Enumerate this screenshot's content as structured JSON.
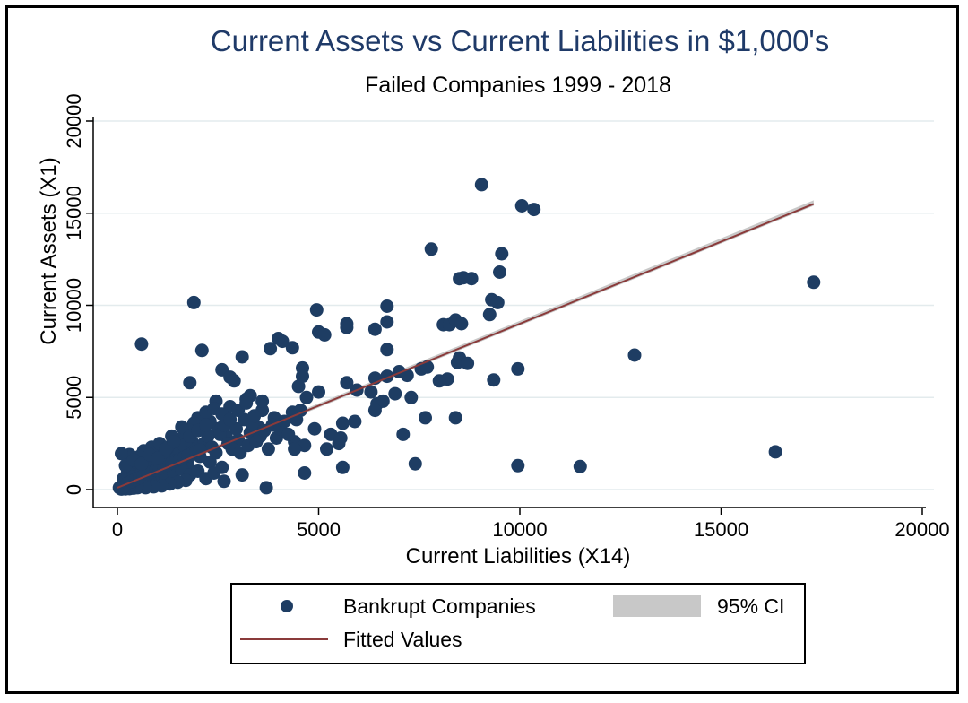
{
  "chart_data": {
    "type": "scatter",
    "title": "Current Assets vs Current Liabilities in $1,000's",
    "subtitle": "Failed Companies 1999 - 2018",
    "xlabel": "Current Liabilities (X14)",
    "ylabel": "Current Assets (X1)",
    "xlim": [
      0,
      20000
    ],
    "ylim": [
      0,
      20000
    ],
    "xticks": [
      0,
      5000,
      10000,
      15000,
      20000
    ],
    "yticks": [
      0,
      5000,
      10000,
      15000,
      20000
    ],
    "x_tick_labels": [
      "0",
      "5000",
      "10000",
      "15000",
      "20000"
    ],
    "y_tick_labels": [
      "0",
      "5000",
      "10000",
      "15000",
      "20000"
    ],
    "grid": "horizontal",
    "legend_position": "bottom",
    "colors": {
      "title": "#1f3a68",
      "points": "#1e3d63",
      "fit_line": "#8a3a3a",
      "ci_band": "#c8c8c8",
      "grid": "#e3ebed"
    },
    "series": [
      {
        "name": "Bankrupt Companies",
        "kind": "scatter",
        "points": [
          [
            9050,
            16550
          ],
          [
            10050,
            15400
          ],
          [
            10350,
            15200
          ],
          [
            17300,
            11250
          ],
          [
            7800,
            13050
          ],
          [
            9550,
            12800
          ],
          [
            9500,
            11800
          ],
          [
            8500,
            11450
          ],
          [
            8600,
            11500
          ],
          [
            8800,
            11450
          ],
          [
            1900,
            10150
          ],
          [
            9300,
            10300
          ],
          [
            9450,
            10150
          ],
          [
            6700,
            9950
          ],
          [
            9250,
            9500
          ],
          [
            4950,
            9750
          ],
          [
            8100,
            8950
          ],
          [
            8250,
            8950
          ],
          [
            8400,
            9200
          ],
          [
            8550,
            9000
          ],
          [
            5700,
            9000
          ],
          [
            5700,
            8800
          ],
          [
            6400,
            8700
          ],
          [
            6700,
            9100
          ],
          [
            5000,
            8550
          ],
          [
            5150,
            8400
          ],
          [
            600,
            7900
          ],
          [
            2100,
            7550
          ],
          [
            3800,
            7650
          ],
          [
            4100,
            8050
          ],
          [
            4350,
            7700
          ],
          [
            4000,
            8200
          ],
          [
            6700,
            7600
          ],
          [
            12850,
            7300
          ],
          [
            8500,
            7150
          ],
          [
            8450,
            6900
          ],
          [
            8700,
            6850
          ],
          [
            9950,
            6550
          ],
          [
            7550,
            6550
          ],
          [
            7700,
            6650
          ],
          [
            7000,
            6400
          ],
          [
            4600,
            6600
          ],
          [
            4600,
            6150
          ],
          [
            3100,
            7200
          ],
          [
            2600,
            6500
          ],
          [
            2800,
            6100
          ],
          [
            6400,
            6050
          ],
          [
            6700,
            6150
          ],
          [
            7200,
            6200
          ],
          [
            8200,
            6000
          ],
          [
            8000,
            5900
          ],
          [
            9350,
            5950
          ],
          [
            1800,
            5800
          ],
          [
            2900,
            5900
          ],
          [
            3300,
            5100
          ],
          [
            4500,
            5600
          ],
          [
            5000,
            5300
          ],
          [
            5700,
            5800
          ],
          [
            5950,
            5400
          ],
          [
            4700,
            5000
          ],
          [
            6300,
            5300
          ],
          [
            6900,
            5200
          ],
          [
            7300,
            5000
          ],
          [
            8400,
            3900
          ],
          [
            7650,
            3900
          ],
          [
            6450,
            4650
          ],
          [
            6600,
            4800
          ],
          [
            6400,
            4300
          ],
          [
            7100,
            3000
          ],
          [
            5900,
            3700
          ],
          [
            5600,
            3600
          ],
          [
            5300,
            3000
          ],
          [
            5500,
            2500
          ],
          [
            5200,
            2200
          ],
          [
            5550,
            2800
          ],
          [
            4900,
            3300
          ],
          [
            4400,
            2600
          ],
          [
            4650,
            2400
          ],
          [
            4400,
            2200
          ],
          [
            4650,
            900
          ],
          [
            5600,
            1200
          ],
          [
            7400,
            1400
          ],
          [
            9950,
            1300
          ],
          [
            11500,
            1250
          ],
          [
            16350,
            2050
          ],
          [
            3100,
            800
          ],
          [
            3700,
            100
          ],
          [
            2650,
            450
          ],
          [
            2300,
            1500
          ],
          [
            2000,
            3900
          ],
          [
            2450,
            4800
          ],
          [
            2800,
            4500
          ],
          [
            3200,
            4900
          ],
          [
            3600,
            4300
          ],
          [
            3900,
            3900
          ],
          [
            3500,
            3400
          ],
          [
            3300,
            3100
          ],
          [
            3000,
            2700
          ],
          [
            2700,
            2900
          ],
          [
            2500,
            3300
          ],
          [
            2300,
            3700
          ],
          [
            2200,
            4200
          ],
          [
            1900,
            3600
          ],
          [
            1800,
            3200
          ],
          [
            1600,
            2800
          ],
          [
            1500,
            2500
          ],
          [
            1400,
            2100
          ],
          [
            1300,
            1800
          ],
          [
            1200,
            1500
          ],
          [
            1100,
            1200
          ],
          [
            1000,
            900
          ],
          [
            900,
            700
          ],
          [
            800,
            500
          ],
          [
            700,
            300
          ],
          [
            600,
            200
          ],
          [
            500,
            100
          ],
          [
            400,
            80
          ],
          [
            300,
            50
          ],
          [
            200,
            40
          ],
          [
            100,
            30
          ],
          [
            150,
            600
          ],
          [
            250,
            900
          ],
          [
            350,
            1200
          ],
          [
            450,
            1500
          ],
          [
            550,
            1800
          ],
          [
            650,
            2100
          ],
          [
            750,
            1600
          ],
          [
            850,
            2300
          ],
          [
            950,
            2000
          ],
          [
            1050,
            2500
          ],
          [
            1150,
            1900
          ],
          [
            1250,
            2300
          ],
          [
            1350,
            2900
          ],
          [
            1450,
            1700
          ],
          [
            1550,
            2000
          ],
          [
            1650,
            2400
          ],
          [
            1750,
            1400
          ],
          [
            1850,
            2600
          ],
          [
            1950,
            2200
          ],
          [
            2050,
            1800
          ],
          [
            2150,
            2500
          ],
          [
            2250,
            2900
          ],
          [
            2350,
            2300
          ],
          [
            2450,
            2000
          ],
          [
            2550,
            3000
          ],
          [
            2650,
            3500
          ],
          [
            2750,
            2500
          ],
          [
            2850,
            2200
          ],
          [
            2950,
            3300
          ],
          [
            3050,
            2000
          ],
          [
            3150,
            3800
          ],
          [
            3250,
            2400
          ],
          [
            3350,
            3600
          ],
          [
            3450,
            2600
          ],
          [
            3550,
            2900
          ],
          [
            3650,
            3200
          ],
          [
            3750,
            2200
          ],
          [
            3850,
            3500
          ],
          [
            3950,
            2800
          ],
          [
            4050,
            3300
          ],
          [
            4150,
            3700
          ],
          [
            4250,
            3000
          ],
          [
            4350,
            4200
          ],
          [
            4450,
            3800
          ],
          [
            4550,
            4300
          ],
          [
            300,
            1900
          ],
          [
            100,
            1950
          ],
          [
            200,
            500
          ],
          [
            400,
            700
          ],
          [
            600,
            900
          ],
          [
            800,
            1100
          ],
          [
            1000,
            1300
          ],
          [
            1200,
            700
          ],
          [
            1400,
            900
          ],
          [
            1600,
            1100
          ],
          [
            1800,
            800
          ],
          [
            2000,
            1000
          ],
          [
            2200,
            600
          ],
          [
            2400,
            900
          ],
          [
            2600,
            1200
          ],
          [
            1700,
            500
          ],
          [
            1500,
            400
          ],
          [
            1300,
            300
          ],
          [
            1100,
            200
          ],
          [
            900,
            150
          ],
          [
            700,
            100
          ],
          [
            500,
            300
          ],
          [
            300,
            250
          ],
          [
            100,
            200
          ],
          [
            50,
            100
          ],
          [
            150,
            150
          ],
          [
            250,
            350
          ],
          [
            350,
            450
          ],
          [
            450,
            550
          ],
          [
            550,
            650
          ],
          [
            650,
            750
          ],
          [
            750,
            850
          ],
          [
            850,
            950
          ],
          [
            950,
            1050
          ],
          [
            1050,
            1150
          ],
          [
            1150,
            1250
          ],
          [
            1250,
            1350
          ],
          [
            1350,
            1450
          ],
          [
            1450,
            1550
          ],
          [
            1550,
            1650
          ],
          [
            1650,
            1750
          ],
          [
            1750,
            1850
          ],
          [
            1850,
            1950
          ],
          [
            1950,
            2050
          ],
          [
            2050,
            2150
          ],
          [
            200,
            1300
          ],
          [
            400,
            1600
          ],
          [
            600,
            1400
          ],
          [
            800,
            1900
          ],
          [
            1000,
            1700
          ],
          [
            1200,
            2200
          ],
          [
            1400,
            2600
          ],
          [
            1600,
            3400
          ],
          [
            1800,
            2900
          ],
          [
            2000,
            3200
          ],
          [
            2200,
            3500
          ],
          [
            2400,
            4400
          ],
          [
            2600,
            4100
          ],
          [
            2800,
            3800
          ],
          [
            3000,
            4300
          ],
          [
            3200,
            4700
          ],
          [
            3400,
            4000
          ],
          [
            3600,
            4800
          ]
        ]
      },
      {
        "name": "Fitted Values",
        "kind": "line",
        "points": [
          [
            0,
            100
          ],
          [
            17300,
            15500
          ]
        ]
      },
      {
        "name": "95% CI",
        "kind": "band",
        "points": [
          [
            0,
            0
          ],
          [
            17300,
            15400
          ],
          [
            17300,
            15700
          ],
          [
            0,
            200
          ]
        ]
      }
    ]
  },
  "legend": {
    "items": [
      {
        "label": "Bankrupt Companies",
        "symbol": "circle"
      },
      {
        "label": "95% CI",
        "symbol": "band"
      },
      {
        "label": "Fitted Values",
        "symbol": "line"
      }
    ]
  }
}
